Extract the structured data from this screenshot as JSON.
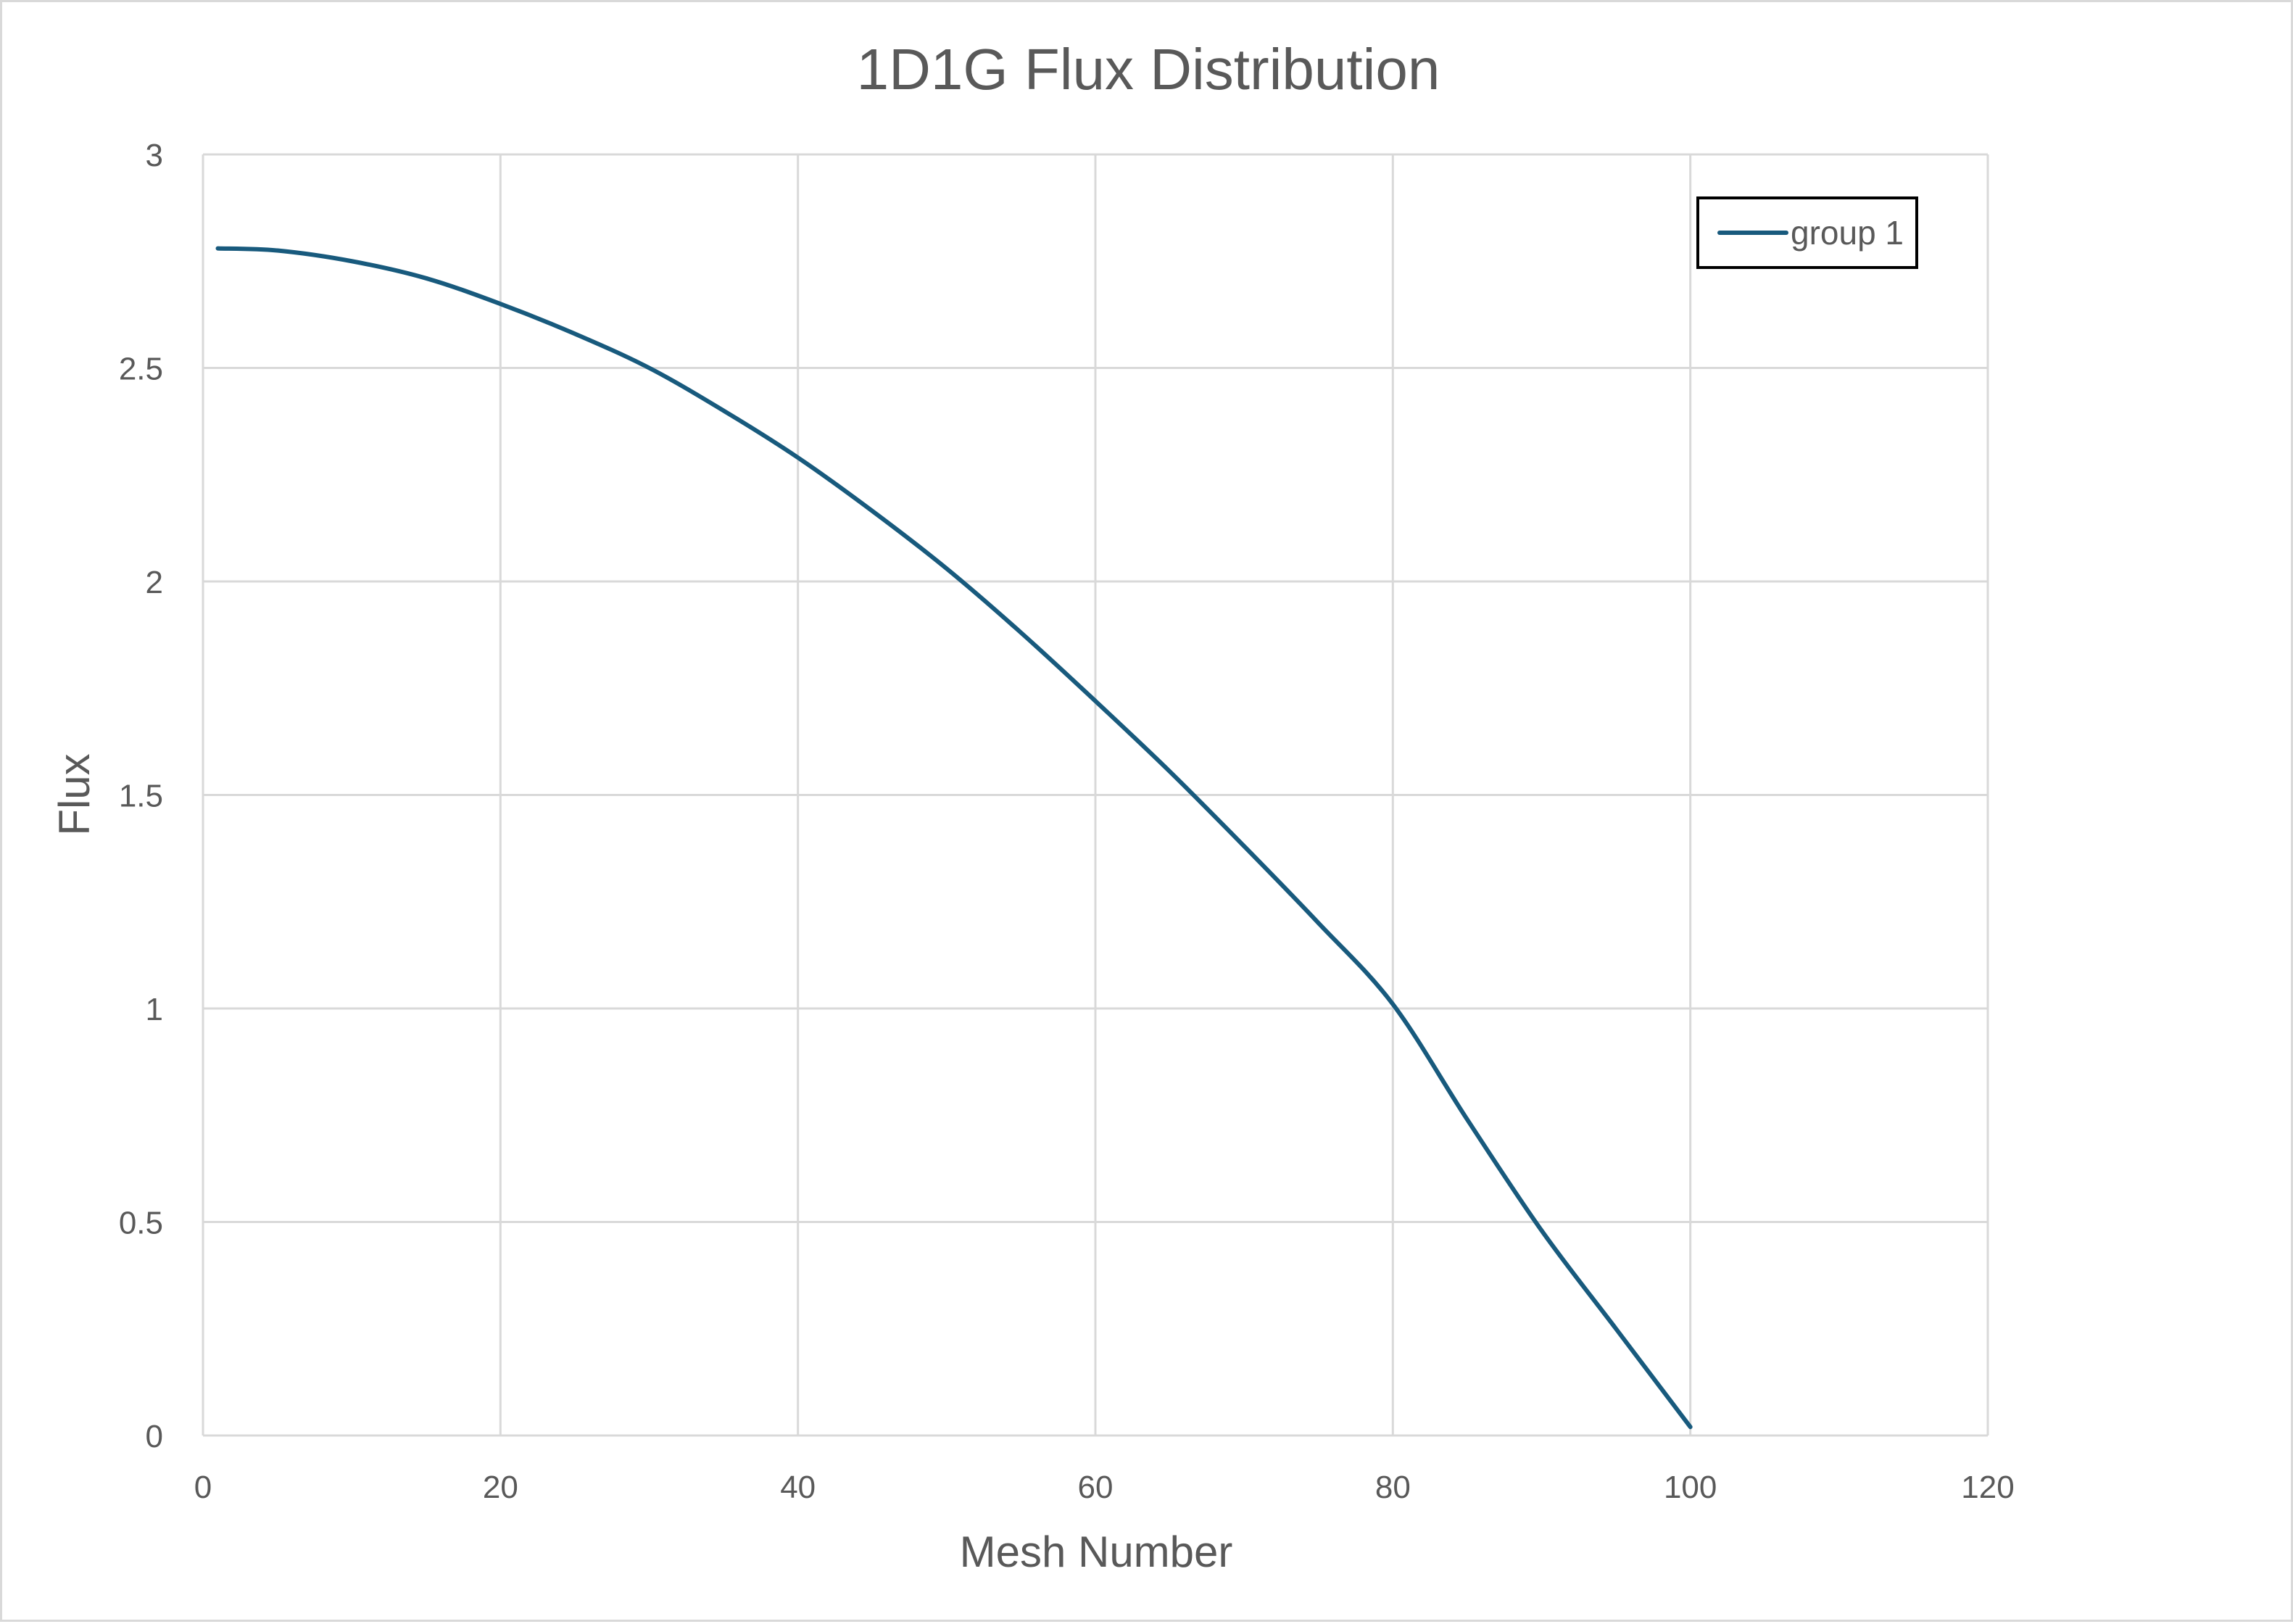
{
  "colors": {
    "series": "#185a7d",
    "grid": "#d9d9d9",
    "text": "#595959",
    "legend_border": "#000000"
  },
  "chart_data": {
    "type": "line",
    "title": "1D1G Flux Distribution",
    "xlabel": "Mesh Number",
    "ylabel": "Flux",
    "xlim": [
      0,
      120
    ],
    "ylim": [
      0,
      3
    ],
    "x_ticks": [
      0,
      20,
      40,
      60,
      80,
      100,
      120
    ],
    "y_ticks": [
      0,
      0.5,
      1,
      1.5,
      2,
      2.5,
      3
    ],
    "x_tick_labels": [
      "0",
      "20",
      "40",
      "60",
      "80",
      "100",
      "120"
    ],
    "y_tick_labels": [
      "0",
      "0.5",
      "1",
      "1.5",
      "2",
      "2.5",
      "3"
    ],
    "grid": true,
    "legend_position": "top-right",
    "series": [
      {
        "name": "group 1",
        "color": "#185a7d",
        "x": [
          1,
          5,
          10,
          15,
          20,
          25,
          30,
          35,
          40,
          45,
          50,
          55,
          60,
          65,
          70,
          75,
          80,
          85,
          90,
          95,
          100
        ],
        "y": [
          2.78,
          2.775,
          2.75,
          2.71,
          2.65,
          2.58,
          2.5,
          2.4,
          2.29,
          2.165,
          2.03,
          1.88,
          1.72,
          1.555,
          1.38,
          1.2,
          1.01,
          0.74,
          0.48,
          0.25,
          0.02
        ]
      }
    ]
  }
}
